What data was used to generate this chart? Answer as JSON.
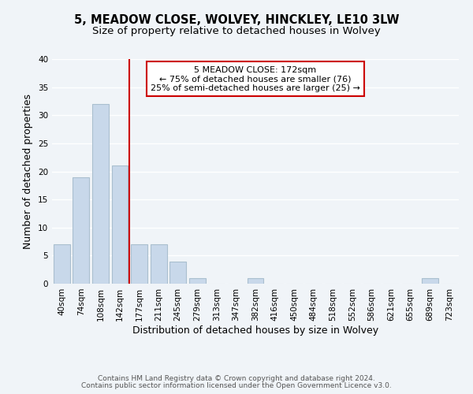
{
  "title": "5, MEADOW CLOSE, WOLVEY, HINCKLEY, LE10 3LW",
  "subtitle": "Size of property relative to detached houses in Wolvey",
  "xlabel": "Distribution of detached houses by size in Wolvey",
  "ylabel": "Number of detached properties",
  "bar_color": "#c8d8ea",
  "bar_edge_color": "#aabfcf",
  "background_color": "#f0f4f8",
  "grid_color": "#ffffff",
  "bin_labels": [
    "40sqm",
    "74sqm",
    "108sqm",
    "142sqm",
    "177sqm",
    "211sqm",
    "245sqm",
    "279sqm",
    "313sqm",
    "347sqm",
    "382sqm",
    "416sqm",
    "450sqm",
    "484sqm",
    "518sqm",
    "552sqm",
    "586sqm",
    "621sqm",
    "655sqm",
    "689sqm",
    "723sqm"
  ],
  "bar_heights": [
    7,
    19,
    32,
    21,
    7,
    7,
    4,
    1,
    0,
    0,
    1,
    0,
    0,
    0,
    0,
    0,
    0,
    0,
    0,
    1,
    0
  ],
  "red_line_index": 4,
  "red_line_color": "#cc0000",
  "annotation_text": "5 MEADOW CLOSE: 172sqm\n← 75% of detached houses are smaller (76)\n25% of semi-detached houses are larger (25) →",
  "annotation_box_color": "#ffffff",
  "annotation_box_edge_color": "#cc0000",
  "ylim": [
    0,
    40
  ],
  "yticks": [
    0,
    5,
    10,
    15,
    20,
    25,
    30,
    35,
    40
  ],
  "footer_line1": "Contains HM Land Registry data © Crown copyright and database right 2024.",
  "footer_line2": "Contains public sector information licensed under the Open Government Licence v3.0.",
  "title_fontsize": 10.5,
  "subtitle_fontsize": 9.5,
  "axis_label_fontsize": 9,
  "tick_fontsize": 7.5,
  "annotation_fontsize": 8,
  "footer_fontsize": 6.5
}
